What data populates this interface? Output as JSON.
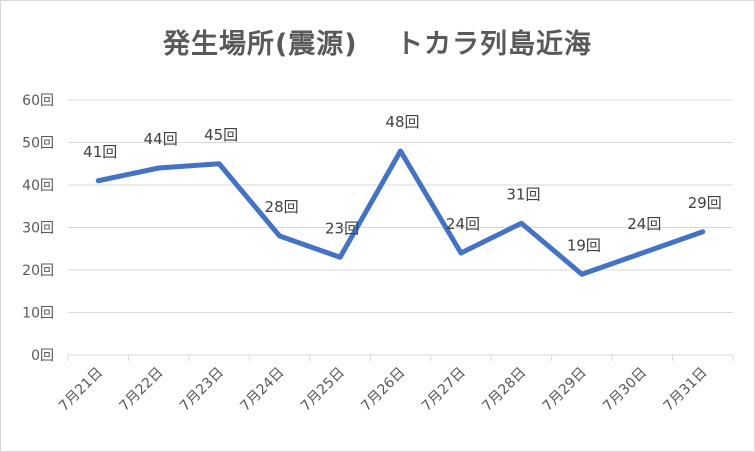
{
  "chart_data": {
    "type": "line",
    "title": "発生場所(震源)　 トカラ列島近海",
    "xlabel": "",
    "ylabel": "",
    "categories": [
      "7月21日",
      "7月22日",
      "7月23日",
      "7月24日",
      "7月25日",
      "7月26日",
      "7月27日",
      "7月28日",
      "7月29日",
      "7月30日",
      "7月31日"
    ],
    "series": [
      {
        "values": [
          41,
          44,
          45,
          28,
          23,
          48,
          24,
          31,
          19,
          24,
          29
        ],
        "data_labels": [
          "41回",
          "44回",
          "45回",
          "28回",
          "23回",
          "48回",
          "24回",
          "31回",
          "19回",
          "24回",
          "29回"
        ],
        "color": "#4472c4"
      }
    ],
    "yticks": [
      0,
      10,
      20,
      30,
      40,
      50,
      60
    ],
    "ytick_labels": [
      "0回",
      "10回",
      "20回",
      "30回",
      "40回",
      "50回",
      "60回"
    ],
    "ylim": [
      0,
      60
    ],
    "grid": true,
    "legend": "none"
  }
}
